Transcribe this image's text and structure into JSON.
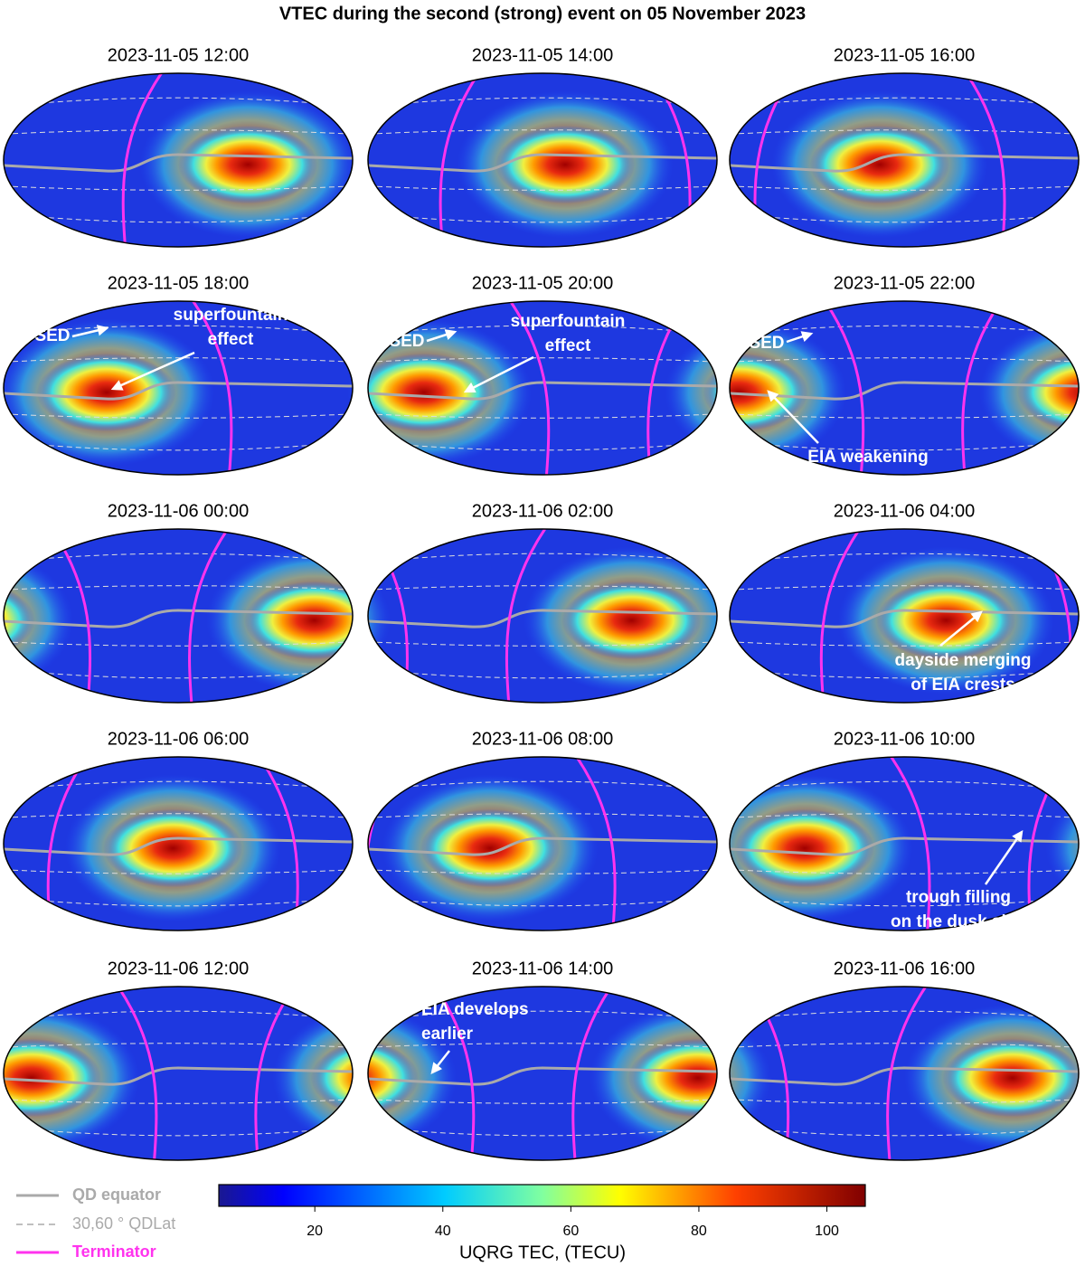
{
  "title": "VTEC during the second (strong) event  on 05 November 2023",
  "panels": [
    {
      "title": "2023-11-05 12:00",
      "annotations": []
    },
    {
      "title": "2023-11-05 14:00",
      "annotations": []
    },
    {
      "title": "2023-11-05 16:00",
      "annotations": []
    },
    {
      "title": "2023-11-05 18:00",
      "annotations": [
        {
          "lines": [
            "SED"
          ]
        },
        {
          "lines": [
            "superfountain",
            "effect"
          ]
        }
      ]
    },
    {
      "title": "2023-11-05 20:00",
      "annotations": [
        {
          "lines": [
            "SED"
          ]
        },
        {
          "lines": [
            "superfountain",
            "effect"
          ]
        }
      ]
    },
    {
      "title": "2023-11-05 22:00",
      "annotations": [
        {
          "lines": [
            "SED"
          ]
        },
        {
          "lines": [
            "EIA weakening"
          ]
        }
      ]
    },
    {
      "title": "2023-11-06 00:00",
      "annotations": []
    },
    {
      "title": "2023-11-06 02:00",
      "annotations": []
    },
    {
      "title": "2023-11-06 04:00",
      "annotations": [
        {
          "lines": [
            "dayside merging",
            "of EIA crests"
          ]
        }
      ]
    },
    {
      "title": "2023-11-06 06:00",
      "annotations": []
    },
    {
      "title": "2023-11-06 08:00",
      "annotations": []
    },
    {
      "title": "2023-11-06 10:00",
      "annotations": [
        {
          "lines": [
            "trough filling",
            "on the dusk side"
          ]
        }
      ]
    },
    {
      "title": "2023-11-06 12:00",
      "annotations": []
    },
    {
      "title": "2023-11-06 14:00",
      "annotations": [
        {
          "lines": [
            "EIA develops",
            "earlier"
          ]
        }
      ]
    },
    {
      "title": "2023-11-06 16:00",
      "annotations": []
    }
  ],
  "legend": [
    {
      "label": "QD equator",
      "color": "#aaaaaa",
      "style": "solid"
    },
    {
      "label": "30,60 ° QDLat",
      "color": "#aaaaaa",
      "style": "dashed"
    },
    {
      "label": "Terminator",
      "color": "#ff33ee",
      "style": "solid"
    }
  ],
  "colorbar": {
    "label": "UQRG TEC, (TECU)",
    "lim": [
      5,
      106
    ],
    "ticks": [
      20,
      40,
      60,
      80,
      100
    ]
  }
}
